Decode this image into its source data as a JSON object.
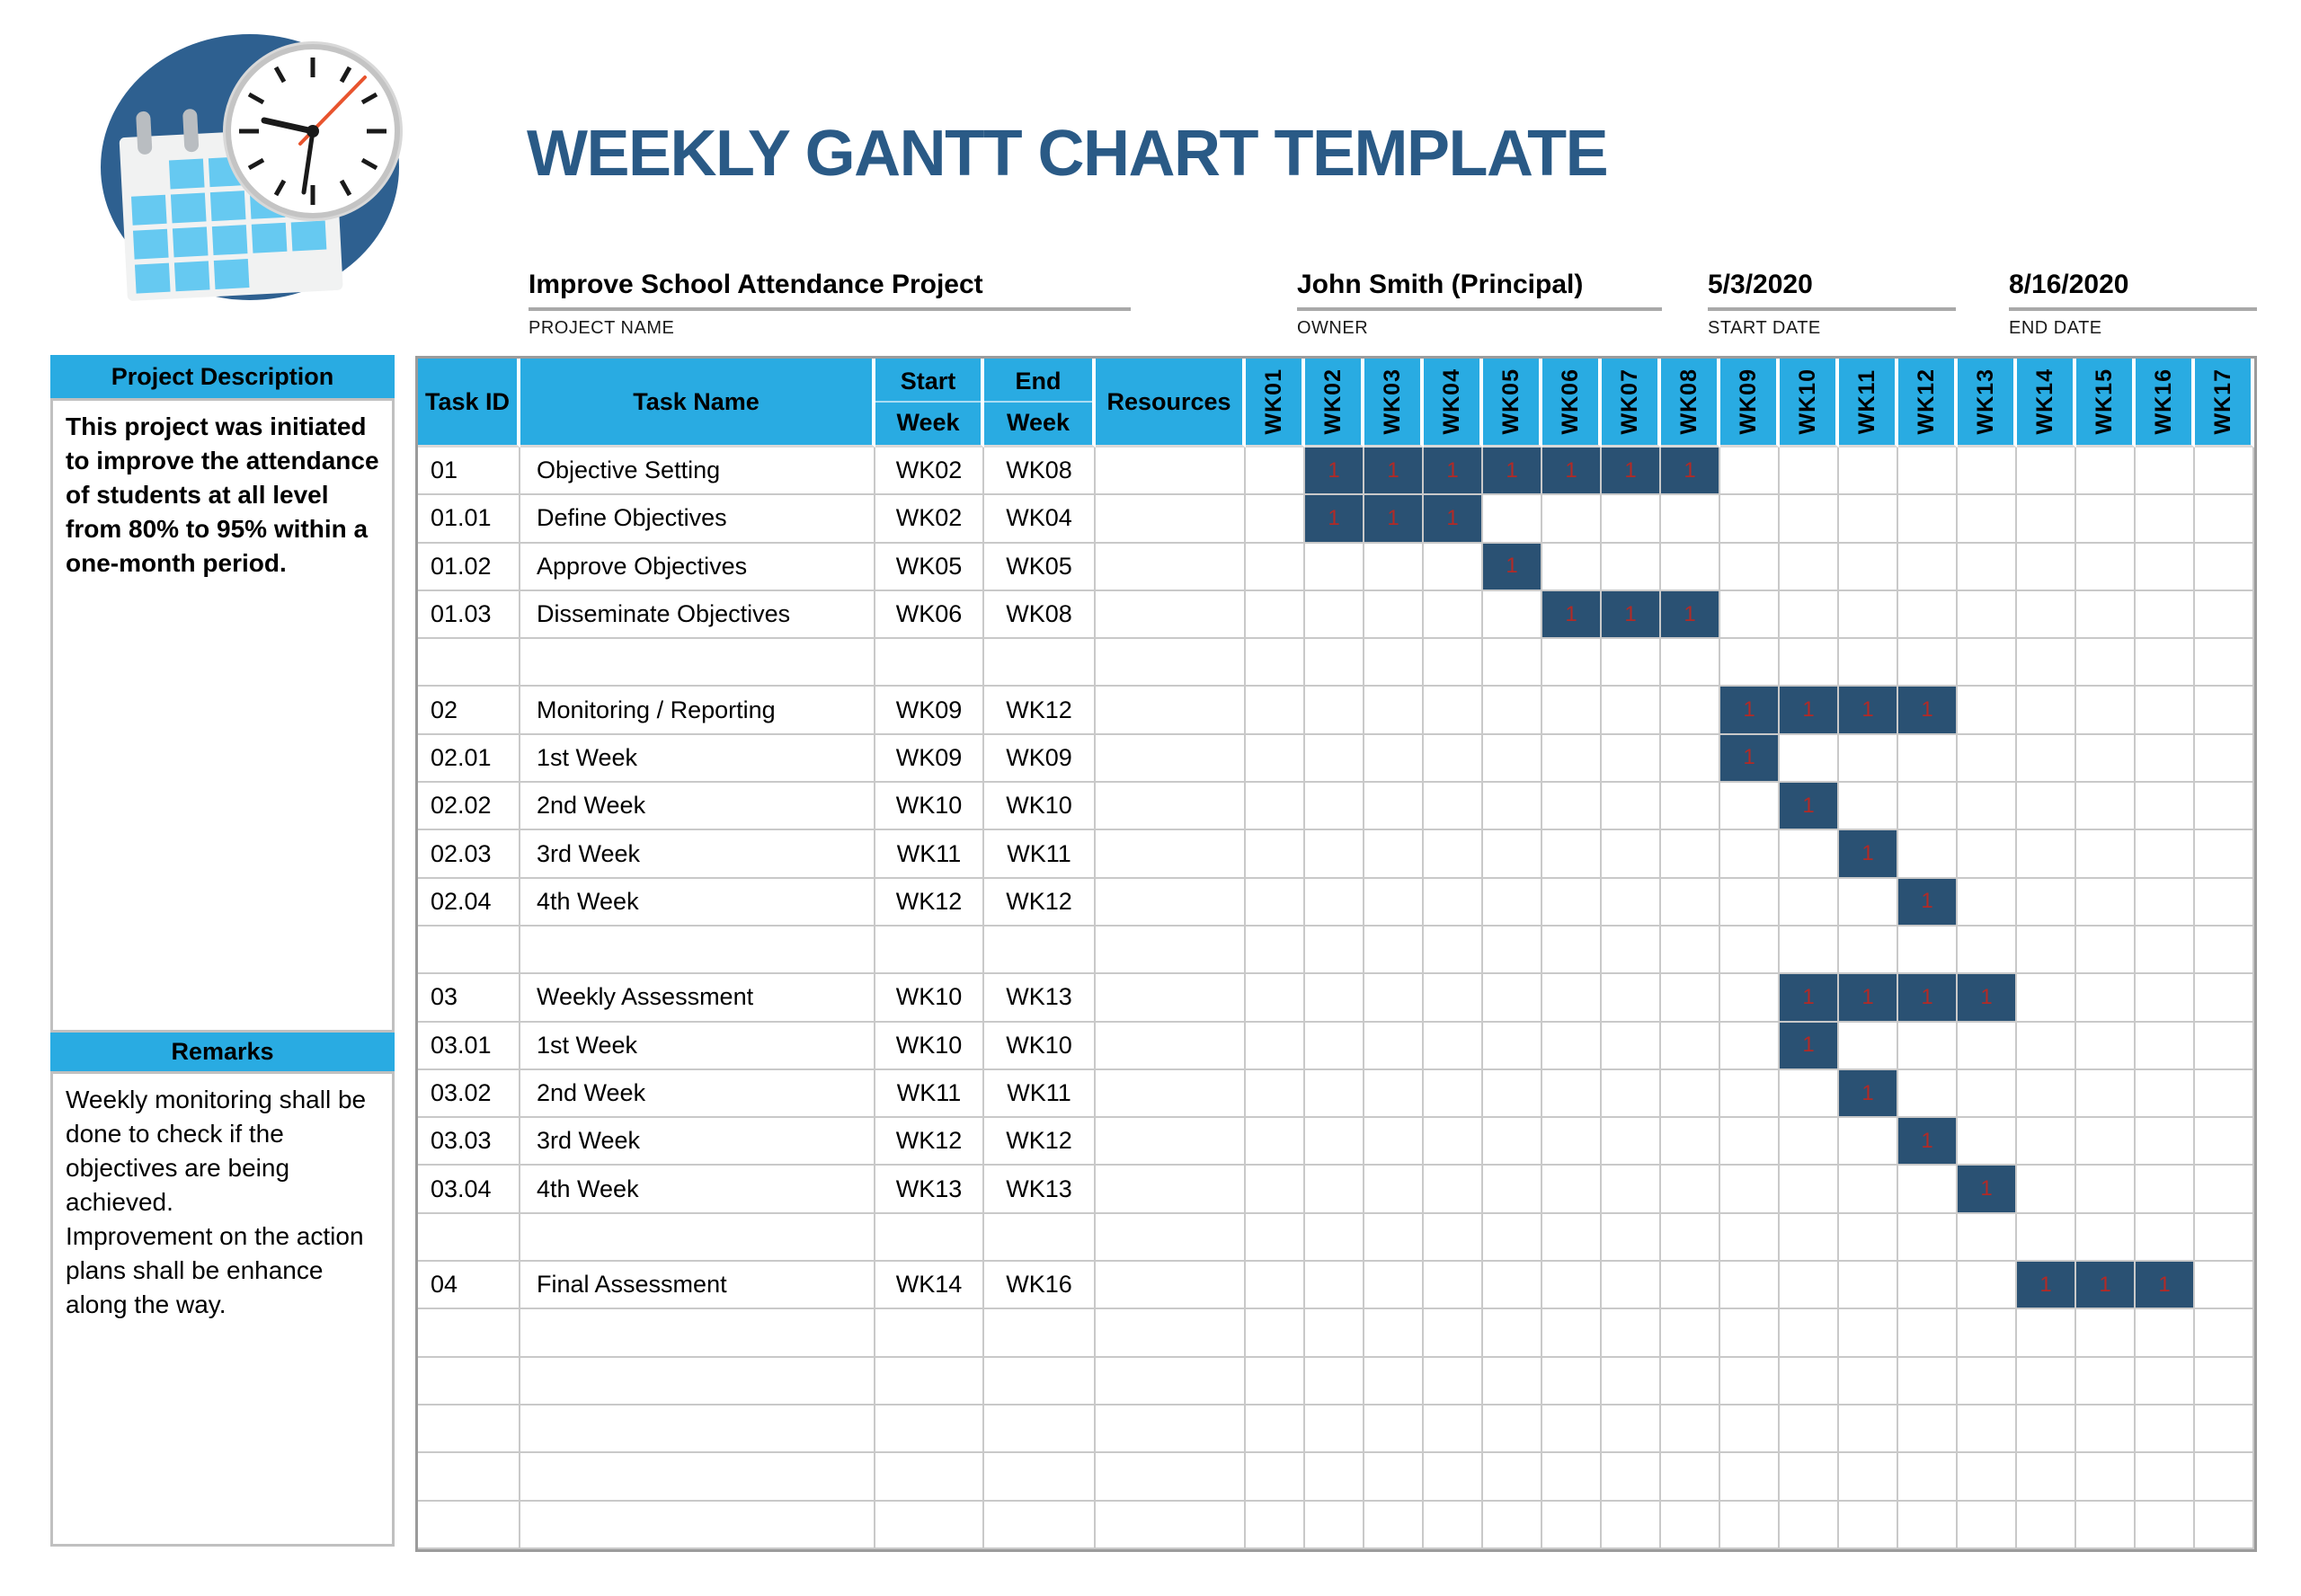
{
  "page_title": "WEEKLY GANTT CHART TEMPLATE",
  "meta": {
    "project": {
      "value": "Improve School Attendance Project",
      "label": "PROJECT NAME"
    },
    "owner": {
      "value": "John Smith (Principal)",
      "label": "OWNER"
    },
    "start_date": {
      "value": "5/3/2020",
      "label": "START DATE"
    },
    "end_date": {
      "value": "8/16/2020",
      "label": "END DATE"
    }
  },
  "sidebar": {
    "description_header": "Project Description",
    "description_text": "This project was initiated to improve the attendance of students at all level from 80% to 95% within a one-month period.",
    "remarks_header": "Remarks",
    "remarks_text": "Weekly monitoring shall be done to check if the objectives are being achieved.\nImprovement on the action plans shall be enhance along the way."
  },
  "table": {
    "headers": {
      "task_id": "Task ID",
      "task_name": "Task Name",
      "start_top": "Start",
      "start_bottom": "Week",
      "end_top": "End",
      "end_bottom": "Week",
      "resources": "Resources"
    }
  },
  "colors": {
    "header_bg": "#29ABE2",
    "bar_fill": "#2A5173",
    "bar_text": "#B22A26",
    "title_text": "#2A5A86",
    "grid_line": "#C9C9C9",
    "logo_circle": "#2E6090",
    "logo_days": "#66C9F1"
  },
  "chart_data": {
    "type": "table",
    "subtype": "gantt-weekly",
    "title": "WEEKLY GANTT CHART TEMPLATE",
    "week_columns": [
      "WK01",
      "WK02",
      "WK03",
      "WK04",
      "WK05",
      "WK06",
      "WK07",
      "WK08",
      "WK09",
      "WK10",
      "WK11",
      "WK12",
      "WK13",
      "WK14",
      "WK15",
      "WK16",
      "WK17"
    ],
    "bar_cell_value": "1",
    "tasks": [
      {
        "id": "01",
        "name": "Objective Setting",
        "start_week": "WK02",
        "end_week": "WK08",
        "resources": "",
        "bar_range": [
          2,
          8
        ]
      },
      {
        "id": "01.01",
        "name": "Define Objectives",
        "start_week": "WK02",
        "end_week": "WK04",
        "resources": "",
        "bar_range": [
          2,
          4
        ]
      },
      {
        "id": "01.02",
        "name": "Approve Objectives",
        "start_week": "WK05",
        "end_week": "WK05",
        "resources": "",
        "bar_range": [
          5,
          5
        ]
      },
      {
        "id": "01.03",
        "name": "Disseminate Objectives",
        "start_week": "WK06",
        "end_week": "WK08",
        "resources": "",
        "bar_range": [
          6,
          8
        ]
      },
      {
        "id": "",
        "name": "",
        "start_week": "",
        "end_week": "",
        "resources": "",
        "bar_range": null
      },
      {
        "id": "02",
        "name": "Monitoring / Reporting",
        "start_week": "WK09",
        "end_week": "WK12",
        "resources": "",
        "bar_range": [
          9,
          12
        ]
      },
      {
        "id": "02.01",
        "name": "1st Week",
        "start_week": "WK09",
        "end_week": "WK09",
        "resources": "",
        "bar_range": [
          9,
          9
        ]
      },
      {
        "id": "02.02",
        "name": "2nd Week",
        "start_week": "WK10",
        "end_week": "WK10",
        "resources": "",
        "bar_range": [
          10,
          10
        ]
      },
      {
        "id": "02.03",
        "name": "3rd Week",
        "start_week": "WK11",
        "end_week": "WK11",
        "resources": "",
        "bar_range": [
          11,
          11
        ]
      },
      {
        "id": "02.04",
        "name": "4th Week",
        "start_week": "WK12",
        "end_week": "WK12",
        "resources": "",
        "bar_range": [
          12,
          12
        ]
      },
      {
        "id": "",
        "name": "",
        "start_week": "",
        "end_week": "",
        "resources": "",
        "bar_range": null
      },
      {
        "id": "03",
        "name": "Weekly Assessment",
        "start_week": "WK10",
        "end_week": "WK13",
        "resources": "",
        "bar_range": [
          10,
          13
        ]
      },
      {
        "id": "03.01",
        "name": "1st Week",
        "start_week": "WK10",
        "end_week": "WK10",
        "resources": "",
        "bar_range": [
          10,
          10
        ]
      },
      {
        "id": "03.02",
        "name": "2nd Week",
        "start_week": "WK11",
        "end_week": "WK11",
        "resources": "",
        "bar_range": [
          11,
          11
        ]
      },
      {
        "id": "03.03",
        "name": "3rd Week",
        "start_week": "WK12",
        "end_week": "WK12",
        "resources": "",
        "bar_range": [
          12,
          12
        ]
      },
      {
        "id": "03.04",
        "name": "4th Week",
        "start_week": "WK13",
        "end_week": "WK13",
        "resources": "",
        "bar_range": [
          13,
          13
        ]
      },
      {
        "id": "",
        "name": "",
        "start_week": "",
        "end_week": "",
        "resources": "",
        "bar_range": null
      },
      {
        "id": "04",
        "name": "Final Assessment",
        "start_week": "WK14",
        "end_week": "WK16",
        "resources": "",
        "bar_range": [
          14,
          16
        ]
      },
      {
        "id": "",
        "name": "",
        "start_week": "",
        "end_week": "",
        "resources": "",
        "bar_range": null
      },
      {
        "id": "",
        "name": "",
        "start_week": "",
        "end_week": "",
        "resources": "",
        "bar_range": null
      },
      {
        "id": "",
        "name": "",
        "start_week": "",
        "end_week": "",
        "resources": "",
        "bar_range": null
      },
      {
        "id": "",
        "name": "",
        "start_week": "",
        "end_week": "",
        "resources": "",
        "bar_range": null
      },
      {
        "id": "",
        "name": "",
        "start_week": "",
        "end_week": "",
        "resources": "",
        "bar_range": null
      }
    ]
  }
}
